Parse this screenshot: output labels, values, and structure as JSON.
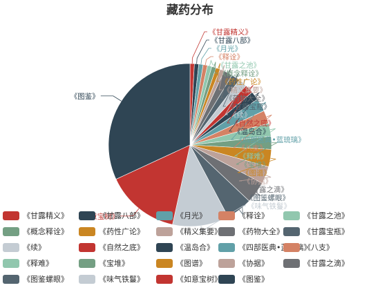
{
  "chart_data": {
    "type": "pie",
    "title": "藏药分布",
    "slices": [
      {
        "name": "《甘露精义》",
        "value": 1,
        "color": "#c23531"
      },
      {
        "name": "《甘露八部》",
        "value": 1,
        "color": "#2f4554"
      },
      {
        "name": "《月光》",
        "value": 1,
        "color": "#61a0a8"
      },
      {
        "name": "《释诠》",
        "value": 1,
        "color": "#d48265"
      },
      {
        "name": "《甘露之池》",
        "value": 1,
        "color": "#91c7ae"
      },
      {
        "name": "《概念释诠》",
        "value": 1,
        "color": "#749f83"
      },
      {
        "name": "《药性广论》",
        "value": 1,
        "color": "#ca8622"
      },
      {
        "name": "《精义集要》",
        "value": 1,
        "color": "#bda29a"
      },
      {
        "name": "《药物大全》",
        "value": 2,
        "color": "#6e7074"
      },
      {
        "name": "《甘露宝瓶》",
        "value": 2,
        "color": "#546570"
      },
      {
        "name": "《续》",
        "value": 2,
        "color": "#c4ccd3"
      },
      {
        "name": "《自然之底》",
        "value": 2,
        "color": "#c23531"
      },
      {
        "name": "《温岛合》",
        "value": 2,
        "color": "#2f4554"
      },
      {
        "name": "《四部医典•蓝琉璃》",
        "value": 3,
        "color": "#61a0a8"
      },
      {
        "name": "《八支》",
        "value": 3,
        "color": "#d48265"
      },
      {
        "name": "《释难》",
        "value": 3,
        "color": "#91c7ae"
      },
      {
        "name": "《宝堆》",
        "value": 3,
        "color": "#749f83"
      },
      {
        "name": "《图谱》",
        "value": 4,
        "color": "#ca8622"
      },
      {
        "name": "《协据》",
        "value": 4,
        "color": "#bda29a"
      },
      {
        "name": "《甘露之滴》",
        "value": 5,
        "color": "#6e7074"
      },
      {
        "name": "《图鉴螺眼》",
        "value": 6,
        "color": "#546570"
      },
      {
        "name": "《味气铁鬘》",
        "value": 13,
        "color": "#c4ccd3"
      },
      {
        "name": "《如意宝树》",
        "value": 17,
        "color": "#c23531"
      },
      {
        "name": "《图鉴》",
        "value": 37,
        "color": "#2f4554"
      }
    ],
    "legend": {
      "placement": "bottom",
      "rows": [
        [
          "《甘露精义》",
          "《甘露八部》",
          "《月光》",
          "《释诠》",
          "《甘露之池》"
        ],
        [
          "《概念释诠》",
          "《药性广论》",
          "《精义集要》",
          "《药物大全》",
          "《甘露宝瓶》"
        ],
        [
          "《续》",
          "《自然之底》",
          "《温岛合》",
          "《四部医典•蓝琉璃》",
          "《八支》"
        ],
        [
          "《释难》",
          "《宝堆》",
          "《图谱》",
          "《协据》",
          "《甘露之滴》"
        ],
        [
          "《图鉴螺眼》",
          "《味气铁鬘》",
          "《如意宝树》",
          "《图鉴》"
        ]
      ]
    },
    "rotation": "clockwise from top"
  }
}
